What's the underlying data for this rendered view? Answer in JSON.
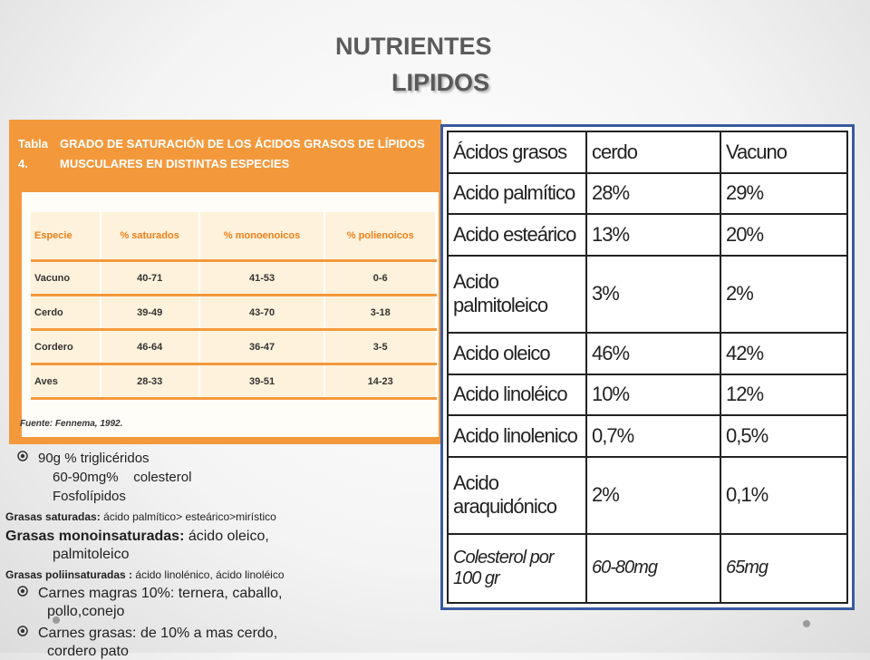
{
  "title_line1": "NUTRIENTES",
  "title_line2": "LIPIDOS",
  "tabla4": {
    "numero": "Tabla 4.",
    "titulo": "GRADO DE SATURACIÓN DE LOS ÁCIDOS GRASOS DE LÍPIDOS MUSCULARES EN DISTINTAS ESPECIES",
    "headers": [
      "Especie",
      "% saturados",
      "% monoenoicos",
      "% polienoicos"
    ],
    "rows": [
      [
        "Vacuno",
        "40-71",
        "41-53",
        "0-6"
      ],
      [
        "Cerdo",
        "39-49",
        "43-70",
        "3-18"
      ],
      [
        "Cordero",
        "46-64",
        "36-47",
        "3-5"
      ],
      [
        "Aves",
        "28-33",
        "39-51",
        "14-23"
      ]
    ],
    "fuente": "Fuente: Fennema, 1992."
  },
  "tabla_acidos": {
    "headers": [
      "Ácidos grasos",
      "cerdo",
      "Vacuno"
    ],
    "rows": [
      [
        "Acido palmítico",
        "28%",
        "29%"
      ],
      [
        "Acido esteárico",
        "13%",
        "20%"
      ],
      [
        "Acido palmitoleico",
        "3%",
        "2%"
      ],
      [
        "Acido oleico",
        "46%",
        "42%"
      ],
      [
        "Acido linoléico",
        "10%",
        "12%"
      ],
      [
        "Acido linolenico",
        "0,7%",
        "0,5%"
      ],
      [
        "Acido araquidónico",
        "2%",
        "0,1%"
      ],
      [
        "Colesterol por 100 gr",
        "60-80mg",
        "65mg"
      ]
    ]
  },
  "texto": {
    "l1": "90g % triglicéridos",
    "l2": "60-90mg%    colesterol",
    "l3": "Fosfolípidos",
    "sat_label": "Grasas saturadas:",
    "sat_text": " ácido palmítico> esteárico>mirístico",
    "mono_label": "Grasas monoinsaturadas:",
    "mono_text": " ácido oleico,",
    "mono_text2": "palmitoleico",
    "poli_label": "Grasas poliinsaturadas :",
    "poli_text": " ácido linolénico, ácido linoléico",
    "magras": "Carnes magras 10%: ternera, caballo,",
    "magras2": "pollo,conejo",
    "grasas": "Carnes grasas: de 10% a mas cerdo,",
    "grasas2": "cordero pato"
  }
}
